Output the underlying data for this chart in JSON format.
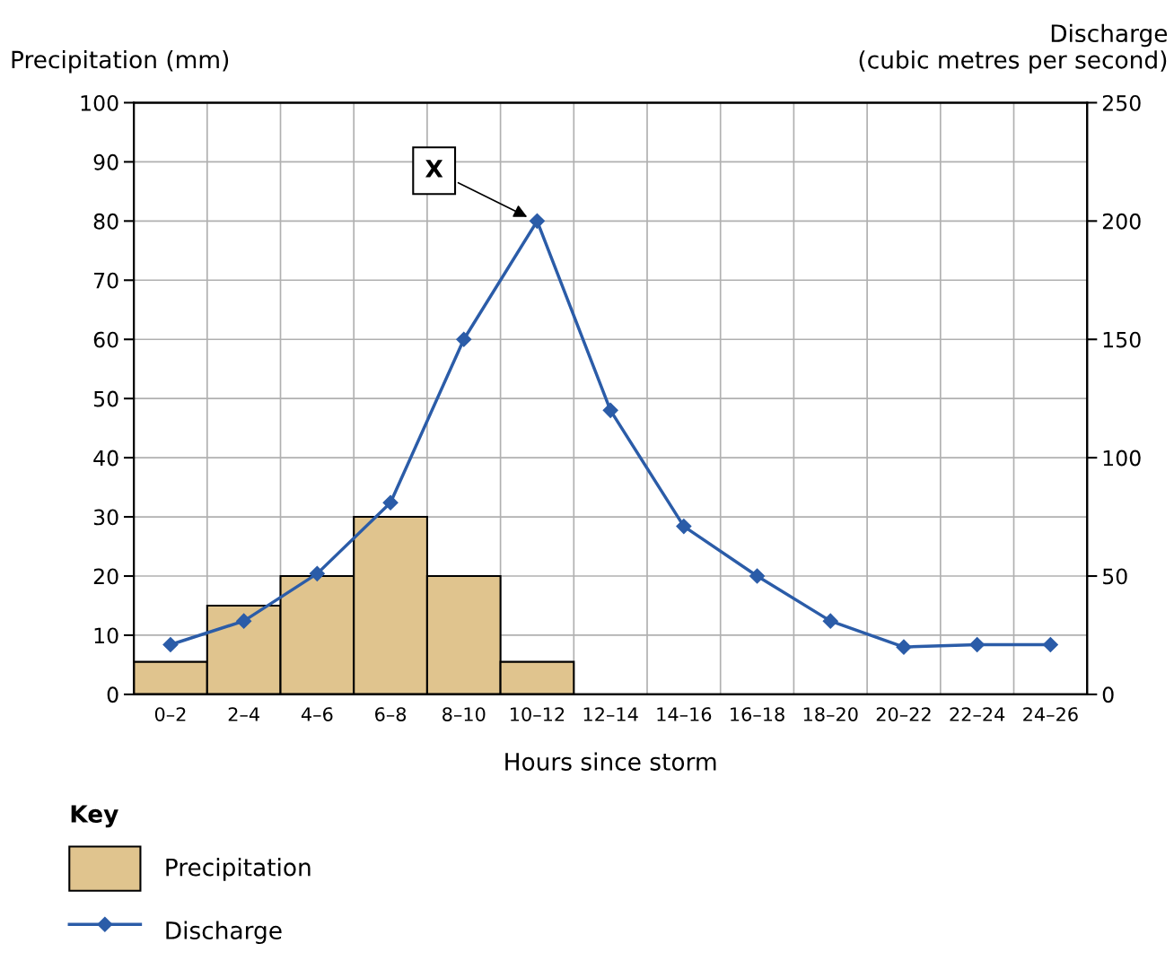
{
  "chart_data": {
    "type": "bar",
    "xlabel": "Hours since storm",
    "ylabel": "Precipitation (mm)",
    "y2label": "Discharge\n(cubic metres per second)",
    "legend_title": "Key",
    "legend": "bottom left",
    "grid": true,
    "categories": [
      "0–2",
      "2–4",
      "4–6",
      "6–8",
      "8–10",
      "10–12",
      "12–14",
      "14–16",
      "16–18",
      "18–20",
      "20–22",
      "22–24",
      "24–26"
    ],
    "series": [
      {
        "name": "Precipitation",
        "color": "#e0c48e",
        "values": [
          5.5,
          15,
          20,
          30,
          20,
          5.5,
          null,
          null,
          null,
          null,
          null,
          null,
          null
        ]
      },
      {
        "name": "Discharge",
        "type": "line",
        "axis": "y2",
        "color": "#2b5ca8",
        "marker": "diamond",
        "values": [
          21,
          31,
          51,
          81,
          150,
          200,
          120,
          71,
          50,
          31,
          20,
          21,
          21
        ]
      }
    ],
    "ylim": [
      0,
      100
    ],
    "yticks": [
      0,
      10,
      20,
      30,
      40,
      50,
      60,
      70,
      80,
      90,
      100
    ],
    "y2lim": [
      0,
      250
    ],
    "y2ticks": [
      0,
      50,
      100,
      150,
      200,
      250
    ],
    "annotations": [
      "X"
    ]
  }
}
